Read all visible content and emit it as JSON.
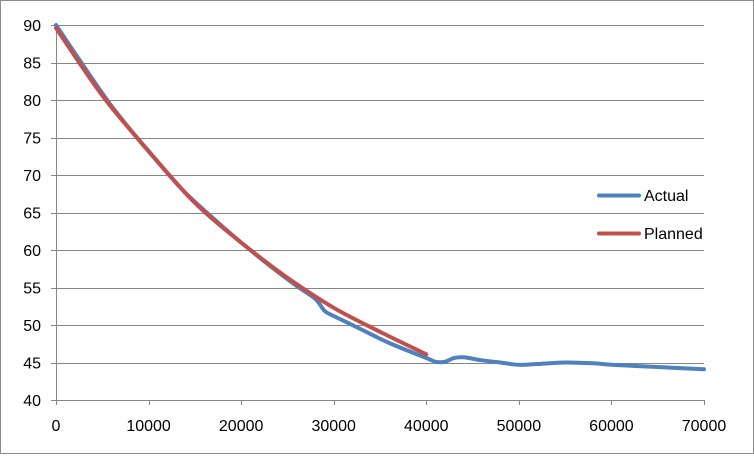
{
  "chart_data": {
    "type": "line",
    "title": "",
    "xlabel": "",
    "ylabel": "",
    "xlim": [
      0,
      70000
    ],
    "ylim": [
      40,
      90
    ],
    "x_ticks": [
      0,
      10000,
      20000,
      30000,
      40000,
      50000,
      60000,
      70000
    ],
    "x_tick_labels": [
      "0",
      "10000",
      "20000",
      "30000",
      "40000",
      "50000",
      "60000",
      "70000"
    ],
    "y_ticks": [
      40,
      45,
      50,
      55,
      60,
      65,
      70,
      75,
      80,
      85,
      90
    ],
    "y_tick_labels": [
      "40",
      "45",
      "50",
      "55",
      "60",
      "65",
      "70",
      "75",
      "80",
      "85",
      "90"
    ],
    "grid": "horizontal",
    "legend_position": "right",
    "series": [
      {
        "name": "Actual",
        "color": "#4f81bd",
        "x": [
          0,
          3000,
          6000,
          9000,
          12000,
          14000,
          17000,
          20000,
          23000,
          26000,
          28000,
          29000,
          30000,
          33000,
          36000,
          40000,
          41000,
          42000,
          43000,
          44000,
          46000,
          48000,
          50000,
          52000,
          55000,
          58000,
          60000,
          65000,
          70000
        ],
        "y": [
          90,
          84.5,
          79.2,
          74.6,
          70.3,
          67.6,
          64.2,
          61,
          58,
          55.2,
          53.5,
          51.9,
          51.2,
          49.4,
          47.6,
          45.6,
          45.1,
          45.1,
          45.6,
          45.7,
          45.3,
          45,
          44.7,
          44.8,
          45,
          44.9,
          44.7,
          44.4,
          44.1
        ]
      },
      {
        "name": "Planned",
        "color": "#c0504d",
        "x": [
          0,
          5000,
          10000,
          15000,
          20000,
          25000,
          30000,
          35000,
          40000
        ],
        "y": [
          89.6,
          80.6,
          73.2,
          66.3,
          61,
          56.3,
          52.3,
          49.1,
          46.1
        ]
      }
    ]
  }
}
